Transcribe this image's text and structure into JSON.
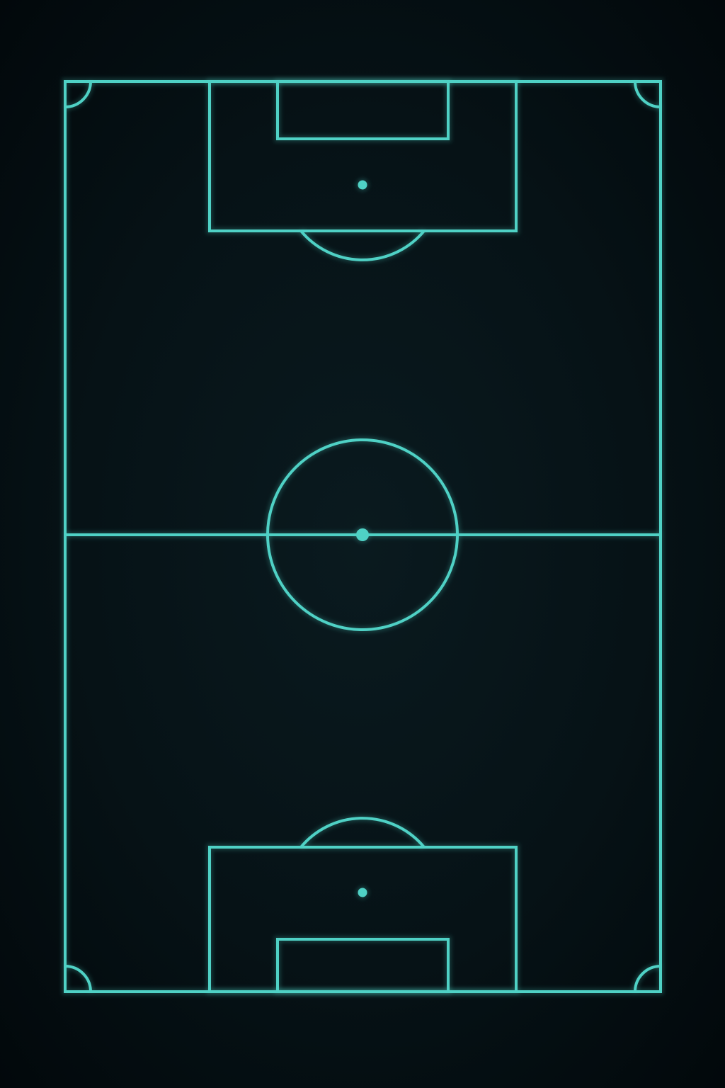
{
  "pitch": {
    "line_color": "#4fd1c5",
    "background_color": "#061216",
    "orientation": "vertical",
    "markings": [
      "touchlines",
      "goal-lines",
      "halfway-line",
      "center-circle",
      "center-spot",
      "penalty-areas",
      "goal-areas",
      "penalty-spots",
      "penalty-arcs",
      "corner-arcs"
    ]
  }
}
